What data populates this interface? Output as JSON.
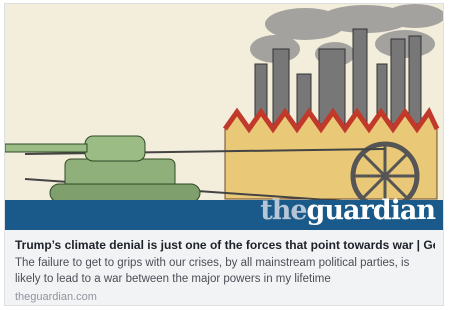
{
  "logo": {
    "prefix": "the",
    "main": "guardian"
  },
  "card": {
    "title": "Trump’s climate denial is just one of the forces that point towards war | Geor...",
    "description": "The failure to get to grips with our crises, by all mainstream political parties, is likely to lead to a war between the major powers in my lifetime",
    "domain": "theguardian.com"
  }
}
